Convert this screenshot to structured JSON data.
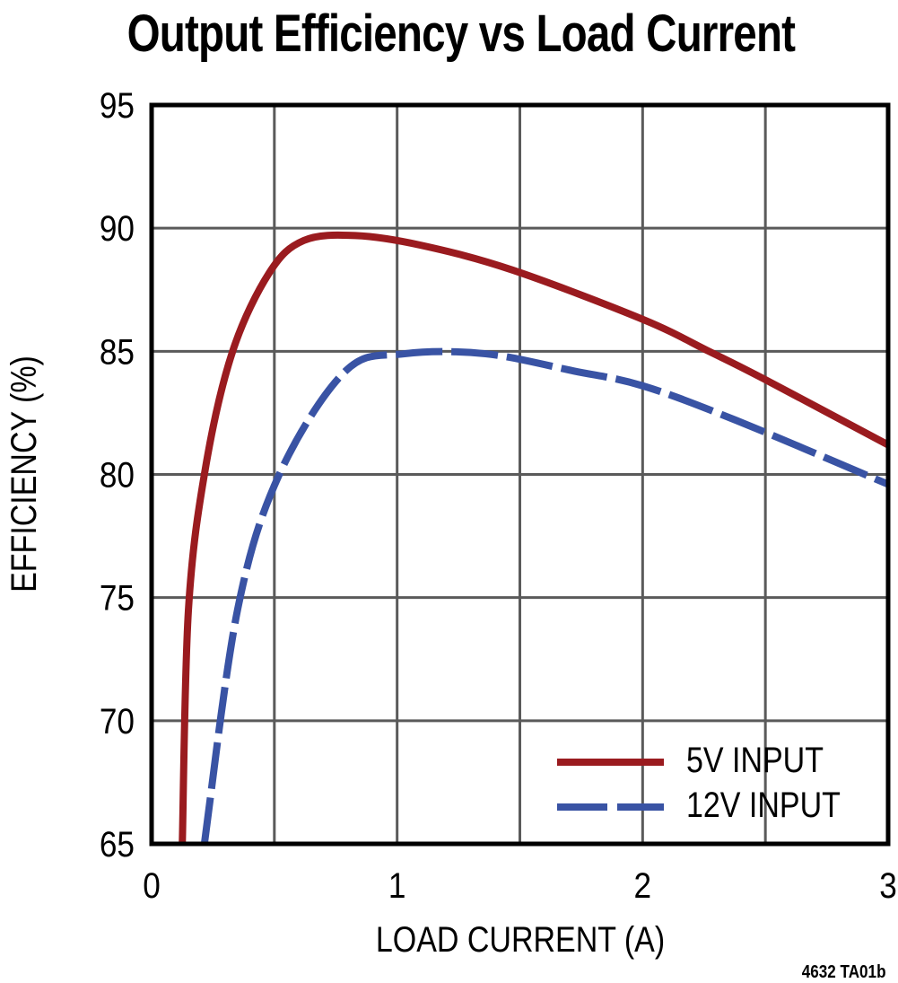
{
  "chart_data": {
    "type": "line",
    "title": "Output Efficiency vs Load Current",
    "xlabel": "LOAD CURRENT (A)",
    "ylabel": "EFFICIENCY (%)",
    "xlim": [
      0,
      3
    ],
    "ylim": [
      65,
      95
    ],
    "x_ticks": [
      "0",
      "1",
      "2",
      "3"
    ],
    "y_ticks": [
      "95",
      "90",
      "85",
      "80",
      "75",
      "70",
      "65"
    ],
    "grid": true,
    "legend_position": "lower right",
    "note": "4632 TA01b",
    "series": [
      {
        "name": "5V INPUT",
        "color": "#9a1b1f",
        "style": "solid",
        "x": [
          0.125,
          0.15,
          0.22,
          0.33,
          0.48,
          0.62,
          0.83,
          1.1,
          1.47,
          2.0,
          2.27,
          2.49,
          3.0
        ],
        "y": [
          65.0,
          74.5,
          80.3,
          85.0,
          88.2,
          89.5,
          89.7,
          89.3,
          88.3,
          86.3,
          85.0,
          83.9,
          81.2
        ]
      },
      {
        "name": "12V INPUT",
        "color": "#3953a4",
        "style": "dashed",
        "x": [
          0.215,
          0.35,
          0.52,
          0.79,
          1.03,
          1.36,
          1.72,
          2.0,
          2.38,
          3.0
        ],
        "y": [
          65.0,
          74.5,
          80.0,
          84.2,
          84.9,
          84.9,
          84.2,
          83.6,
          82.2,
          79.6
        ]
      }
    ]
  }
}
